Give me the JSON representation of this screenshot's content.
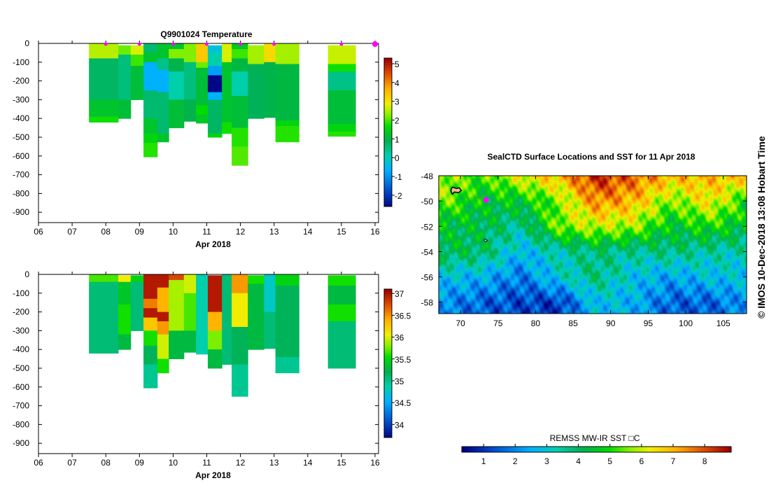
{
  "chart_data": [
    {
      "type": "heatmap",
      "title": "Q9901024  Temperature",
      "xlabel": "Apr 2018",
      "ylabel": "",
      "xlim": [
        6,
        16
      ],
      "ylim": [
        -950,
        0
      ],
      "xticks": [
        "06",
        "07",
        "08",
        "09",
        "10",
        "11",
        "12",
        "13",
        "14",
        "15",
        "16"
      ],
      "yticks": [
        "0",
        "-100",
        "-200",
        "-300",
        "-400",
        "-500",
        "-600",
        "-700",
        "-800",
        "-900"
      ],
      "colorbar": {
        "range": [
          -2.6,
          5.3
        ],
        "ticks": [
          "5",
          "4",
          "3",
          "2",
          "1",
          "0",
          "-1",
          "-2"
        ]
      },
      "surface_markers_day": [
        8,
        9,
        10,
        11,
        12,
        13,
        15,
        16
      ],
      "profiles": [
        {
          "x": [
            7.5,
            8.37
          ],
          "layers": [
            [
              0,
              80,
              2.6
            ],
            [
              80,
              300,
              0.8
            ],
            [
              300,
              390,
              1.3
            ],
            [
              390,
              420,
              1.8
            ]
          ]
        },
        {
          "x": [
            8.37,
            8.74
          ],
          "layers": [
            [
              10,
              60,
              2.2
            ],
            [
              60,
              300,
              0.6
            ],
            [
              300,
              400,
              1.2
            ]
          ]
        },
        {
          "x": [
            8.74,
            9.12
          ],
          "layers": [
            [
              10,
              60,
              2.8
            ],
            [
              60,
              120,
              2.0
            ],
            [
              120,
              300,
              1.2
            ]
          ]
        },
        {
          "x": [
            9.12,
            9.53
          ],
          "layers": [
            [
              0,
              50,
              0.7
            ],
            [
              50,
              100,
              1.3
            ],
            [
              100,
              250,
              -0.6
            ],
            [
              250,
              400,
              0.7
            ],
            [
              400,
              480,
              1.3
            ],
            [
              480,
              530,
              1.6
            ],
            [
              530,
              605,
              1.9
            ]
          ]
        },
        {
          "x": [
            9.53,
            9.87
          ],
          "layers": [
            [
              0,
              80,
              1.3
            ],
            [
              80,
              140,
              0.5
            ],
            [
              140,
              260,
              -0.6
            ],
            [
              260,
              480,
              0.7
            ],
            [
              480,
              525,
              1.3
            ]
          ]
        },
        {
          "x": [
            9.87,
            10.32
          ],
          "layers": [
            [
              0,
              30,
              1.3
            ],
            [
              30,
              80,
              2.3
            ],
            [
              80,
              150,
              1.0
            ],
            [
              150,
              300,
              0.2
            ],
            [
              300,
              450,
              1.2
            ]
          ]
        },
        {
          "x": [
            10.32,
            10.68
          ],
          "layers": [
            [
              0,
              100,
              2.3
            ],
            [
              100,
              300,
              0.6
            ],
            [
              300,
              415,
              1.0
            ]
          ]
        },
        {
          "x": [
            10.68,
            11.03
          ],
          "layers": [
            [
              0,
              100,
              3.4
            ],
            [
              100,
              130,
              2.2
            ],
            [
              130,
              330,
              1.2
            ],
            [
              330,
              380,
              1.7
            ],
            [
              380,
              425,
              1.4
            ]
          ]
        },
        {
          "x": [
            11.03,
            11.45
          ],
          "layers": [
            [
              10,
              50,
              -0.2
            ],
            [
              50,
              120,
              0.2
            ],
            [
              120,
              170,
              -0.8
            ],
            [
              170,
              260,
              -2.5
            ],
            [
              260,
              300,
              -0.6
            ],
            [
              300,
              480,
              0.8
            ],
            [
              480,
              500,
              1.6
            ]
          ]
        },
        {
          "x": [
            11.45,
            11.74
          ],
          "layers": [
            [
              0,
              100,
              2.8
            ],
            [
              100,
              420,
              1.3
            ],
            [
              420,
              480,
              1.8
            ]
          ]
        },
        {
          "x": [
            11.74,
            12.22
          ],
          "layers": [
            [
              0,
              30,
              1.4
            ],
            [
              30,
              80,
              2.0
            ],
            [
              80,
              150,
              1.1
            ],
            [
              150,
              280,
              0.2
            ],
            [
              280,
              450,
              1.2
            ],
            [
              450,
              550,
              1.9
            ],
            [
              550,
              650,
              2.1
            ]
          ]
        },
        {
          "x": [
            12.22,
            12.7
          ],
          "layers": [
            [
              10,
              110,
              2.5
            ],
            [
              110,
              400,
              0.9
            ]
          ]
        },
        {
          "x": [
            12.7,
            13.04
          ],
          "layers": [
            [
              0,
              100,
              3.2
            ],
            [
              100,
              395,
              1.0
            ]
          ]
        },
        {
          "x": [
            13.04,
            13.74
          ],
          "layers": [
            [
              0,
              110,
              2.5
            ],
            [
              110,
              410,
              1.1
            ],
            [
              410,
              440,
              1.6
            ],
            [
              440,
              525,
              1.9
            ]
          ]
        },
        {
          "x": [
            14.6,
            15.42
          ],
          "layers": [
            [
              10,
              110,
              2.7
            ],
            [
              110,
              150,
              1.8
            ],
            [
              150,
              250,
              0.5
            ],
            [
              250,
              430,
              1.2
            ],
            [
              430,
              470,
              1.6
            ],
            [
              470,
              495,
              1.9
            ]
          ]
        }
      ]
    },
    {
      "type": "heatmap",
      "title": "",
      "xlabel": "Apr 2018",
      "ylabel": "",
      "xlim": [
        6,
        16
      ],
      "ylim": [
        -950,
        0
      ],
      "xticks": [
        "06",
        "07",
        "08",
        "09",
        "10",
        "11",
        "12",
        "13",
        "14",
        "15",
        "16"
      ],
      "yticks": [
        "0",
        "-100",
        "-200",
        "-300",
        "-400",
        "-500",
        "-600",
        "-700",
        "-800",
        "-900"
      ],
      "colorbar": {
        "range": [
          33.7,
          37.1
        ],
        "ticks": [
          "37",
          "36.5",
          "36",
          "35.5",
          "35",
          "34.5",
          "34"
        ]
      },
      "profiles": [
        {
          "x": [
            7.5,
            8.37
          ],
          "layers": [
            [
              0,
              40,
              35.7
            ],
            [
              40,
              420,
              35.1
            ]
          ]
        },
        {
          "x": [
            8.37,
            8.74
          ],
          "layers": [
            [
              5,
              40,
              36.1
            ],
            [
              40,
              160,
              35.4
            ],
            [
              160,
              320,
              35.6
            ],
            [
              320,
              400,
              35.3
            ]
          ]
        },
        {
          "x": [
            8.74,
            9.12
          ],
          "layers": [
            [
              5,
              40,
              35.5
            ],
            [
              40,
              300,
              35.1
            ]
          ]
        },
        {
          "x": [
            9.12,
            9.53
          ],
          "layers": [
            [
              0,
              130,
              37.0
            ],
            [
              130,
              180,
              36.6
            ],
            [
              180,
              230,
              37.0
            ],
            [
              230,
              300,
              36.3
            ],
            [
              300,
              380,
              35.6
            ],
            [
              380,
              480,
              35.2
            ],
            [
              480,
              605,
              35.0
            ]
          ]
        },
        {
          "x": [
            9.53,
            9.87
          ],
          "layers": [
            [
              0,
              70,
              37.0
            ],
            [
              70,
              200,
              36.4
            ],
            [
              200,
              250,
              37.0
            ],
            [
              250,
              320,
              36.5
            ],
            [
              320,
              450,
              36.0
            ],
            [
              450,
              525,
              35.6
            ]
          ]
        },
        {
          "x": [
            9.87,
            10.32
          ],
          "layers": [
            [
              0,
              30,
              36.8
            ],
            [
              30,
              300,
              35.9
            ],
            [
              300,
              450,
              35.3
            ]
          ]
        },
        {
          "x": [
            10.32,
            10.68
          ],
          "layers": [
            [
              0,
              100,
              36.0
            ],
            [
              100,
              300,
              35.7
            ],
            [
              300,
              415,
              35.3
            ]
          ]
        },
        {
          "x": [
            10.68,
            11.03
          ],
          "layers": [
            [
              0,
              425,
              34.9
            ]
          ]
        },
        {
          "x": [
            11.03,
            11.45
          ],
          "layers": [
            [
              5,
              200,
              37.0
            ],
            [
              200,
              300,
              36.4
            ],
            [
              300,
              400,
              35.8
            ],
            [
              400,
              500,
              35.3
            ]
          ]
        },
        {
          "x": [
            11.45,
            11.74
          ],
          "layers": [
            [
              0,
              480,
              35.1
            ]
          ]
        },
        {
          "x": [
            11.74,
            12.22
          ],
          "layers": [
            [
              0,
              100,
              36.5
            ],
            [
              100,
              280,
              36.1
            ],
            [
              280,
              480,
              35.2
            ],
            [
              480,
              650,
              35.0
            ]
          ]
        },
        {
          "x": [
            12.22,
            12.7
          ],
          "layers": [
            [
              5,
              50,
              35.6
            ],
            [
              50,
              400,
              35.3
            ]
          ]
        },
        {
          "x": [
            12.7,
            13.04
          ],
          "layers": [
            [
              0,
              200,
              34.8
            ],
            [
              200,
              395,
              35.1
            ]
          ]
        },
        {
          "x": [
            13.04,
            13.74
          ],
          "layers": [
            [
              0,
              60,
              35.5
            ],
            [
              60,
              440,
              35.2
            ],
            [
              440,
              525,
              35.0
            ]
          ]
        },
        {
          "x": [
            14.6,
            15.42
          ],
          "layers": [
            [
              5,
              60,
              35.6
            ],
            [
              60,
              160,
              35.3
            ],
            [
              160,
              250,
              35.6
            ],
            [
              250,
              500,
              35.1
            ]
          ]
        }
      ]
    },
    {
      "type": "heatmap",
      "title": "SealCTD Surface Locations and SST for 11 Apr 2018",
      "xlim": [
        67.1,
        108.1
      ],
      "ylim": [
        -58.9,
        -48
      ],
      "xticks": [
        "70",
        "75",
        "80",
        "85",
        "90",
        "95",
        "100",
        "105"
      ],
      "yticks": [
        "-48",
        "-50",
        "-52",
        "-54",
        "-56",
        "-58"
      ],
      "grid_lats": [
        -48,
        -50,
        -52,
        -54,
        -56,
        -58
      ],
      "grid_lons": [
        68,
        73,
        78,
        83,
        88,
        93,
        98,
        103,
        108
      ],
      "sst": [
        [
          5.8,
          5.2,
          6.3,
          7.0,
          8.5,
          7.8,
          7.0,
          7.0,
          6.8
        ],
        [
          5.5,
          4.5,
          4.6,
          5.5,
          7.5,
          7.0,
          5.5,
          6.5,
          5.0
        ],
        [
          4.4,
          4.2,
          3.5,
          5.6,
          6.0,
          5.8,
          4.5,
          5.0,
          4.4
        ],
        [
          4.2,
          4.0,
          2.6,
          3.3,
          3.8,
          3.5,
          3.8,
          3.4,
          3.3
        ],
        [
          2.8,
          2.5,
          1.8,
          3.0,
          3.8,
          2.8,
          2.3,
          2.8,
          2.8
        ],
        [
          2.0,
          1.5,
          1.2,
          1.0,
          2.8,
          2.5,
          1.5,
          1.5,
          2.2
        ]
      ],
      "seal_location": {
        "lon": 73.4,
        "lat": -49.9
      },
      "colorbar": {
        "label": "REMSS MW-IR SST □C",
        "range": [
          0.31,
          8.84
        ],
        "ticks": [
          "1",
          "2",
          "3",
          "4",
          "5",
          "6",
          "7",
          "8"
        ]
      }
    }
  ],
  "credit": "©  IMOS 10-Dec-2018 13:08 Hobart Time",
  "colors": {
    "marker": "#ff00ff",
    "land": "#f0b890"
  }
}
